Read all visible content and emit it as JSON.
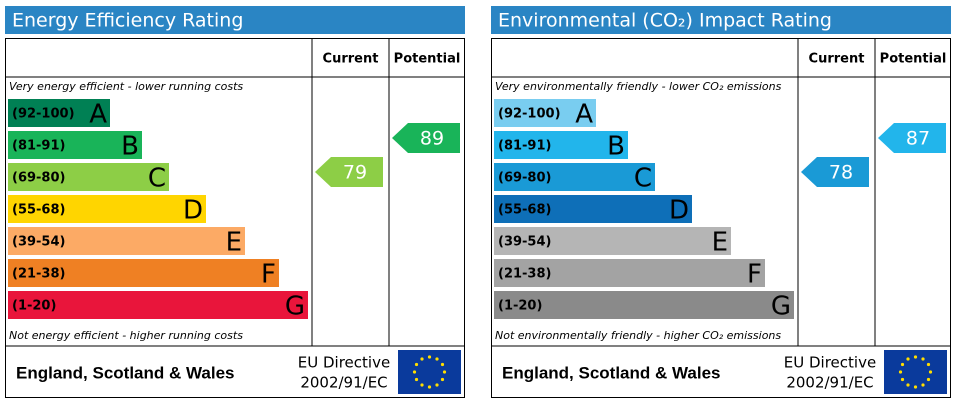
{
  "panels": [
    {
      "title": "Energy Efficiency Rating",
      "headers": [
        "Current",
        "Potential"
      ],
      "top_note": "Very energy efficient - lower running costs",
      "bottom_note": "Not energy efficient - higher running costs",
      "bands": [
        {
          "range": "(92-100)",
          "letter": "A",
          "color": "#008054"
        },
        {
          "range": "(81-91)",
          "letter": "B",
          "color": "#19b459"
        },
        {
          "range": "(69-80)",
          "letter": "C",
          "color": "#8dce46"
        },
        {
          "range": "(55-68)",
          "letter": "D",
          "color": "#ffd500"
        },
        {
          "range": "(39-54)",
          "letter": "E",
          "color": "#fcaa65"
        },
        {
          "range": "(21-38)",
          "letter": "F",
          "color": "#ef8023"
        },
        {
          "range": "(1-20)",
          "letter": "G",
          "color": "#e9153b"
        }
      ],
      "current": 79,
      "potential": 89,
      "footer": {
        "region": "England, Scotland & Wales",
        "directive": "EU Directive",
        "code": "2002/91/EC"
      }
    },
    {
      "title": "Environmental (CO₂) Impact Rating",
      "headers": [
        "Current",
        "Potential"
      ],
      "top_note": "Very environmentally friendly - lower CO₂ emissions",
      "bottom_note": "Not environmentally friendly - higher CO₂ emissions",
      "bands": [
        {
          "range": "(92-100)",
          "letter": "A",
          "color": "#79cdf0"
        },
        {
          "range": "(81-91)",
          "letter": "B",
          "color": "#22b5eb"
        },
        {
          "range": "(69-80)",
          "letter": "C",
          "color": "#1a9ad6"
        },
        {
          "range": "(55-68)",
          "letter": "D",
          "color": "#0e6fb8"
        },
        {
          "range": "(39-54)",
          "letter": "E",
          "color": "#b5b5b5"
        },
        {
          "range": "(21-38)",
          "letter": "F",
          "color": "#a3a3a3"
        },
        {
          "range": "(1-20)",
          "letter": "G",
          "color": "#8a8a8a"
        }
      ],
      "current": 78,
      "potential": 87,
      "footer": {
        "region": "England, Scotland & Wales",
        "directive": "EU Directive",
        "code": "2002/91/EC"
      }
    }
  ]
}
